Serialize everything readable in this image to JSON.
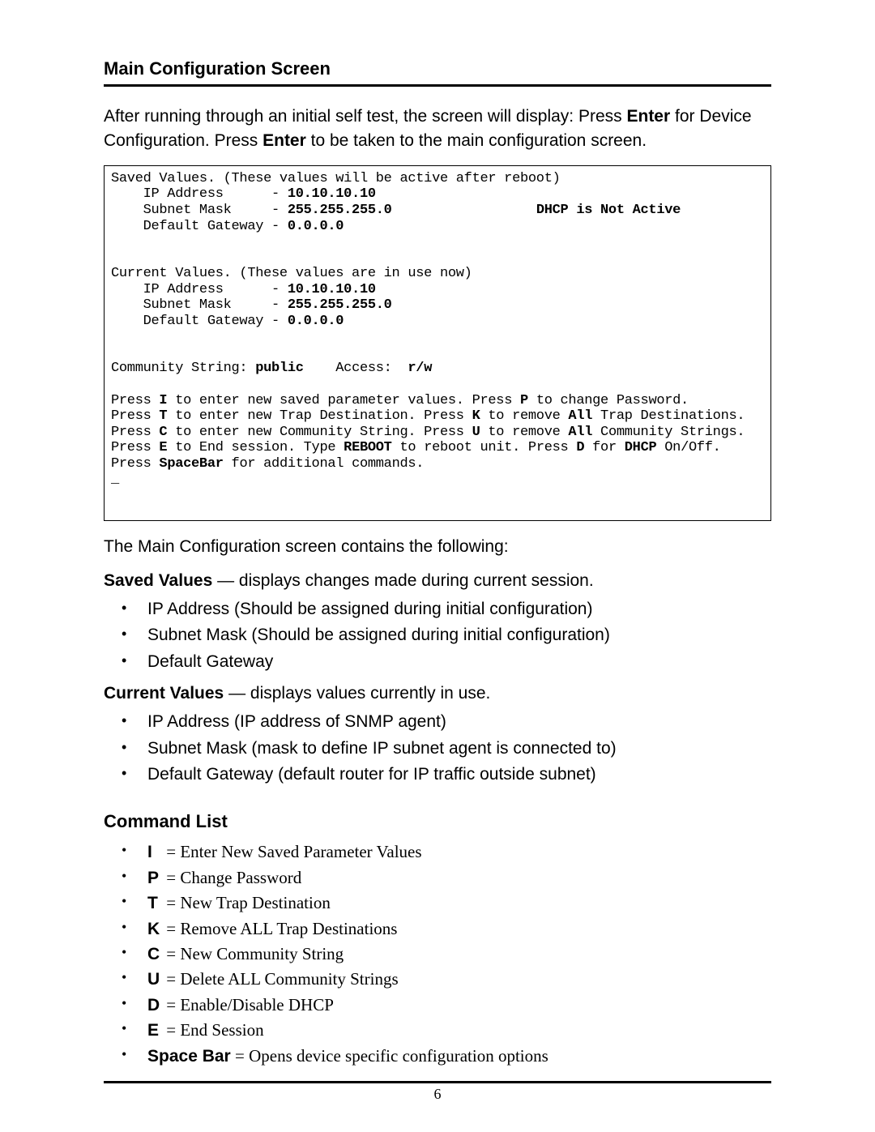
{
  "heading": "Main Configuration Screen",
  "intro_part1": "After running through an initial self test, the screen will display: Press ",
  "intro_bold1": "Enter",
  "intro_part2": " for Device Configuration.  Press ",
  "intro_bold2": "Enter",
  "intro_part3": " to be taken to the main configuration screen.",
  "terminal": {
    "saved_header": "Saved Values. (These values will be active after reboot)",
    "saved_ip_label": "    IP Address      - ",
    "saved_ip_value": "10.10.10.10",
    "saved_mask_label": "    Subnet Mask     - ",
    "saved_mask_value": "255.255.255.0",
    "dhcp_status_spacer": "                  ",
    "dhcp_status": "DHCP is Not Active",
    "saved_gw_label": "    Default Gateway - ",
    "saved_gw_value": "0.0.0.0",
    "current_header": "Current Values. (These values are in use now)",
    "current_ip_label": "    IP Address      - ",
    "current_ip_value": "10.10.10.10",
    "current_mask_label": "    Subnet Mask     - ",
    "current_mask_value": "255.255.255.0",
    "current_gw_label": "    Default Gateway - ",
    "current_gw_value": "0.0.0.0",
    "community_label": "Community String: ",
    "community_value": "public",
    "access_label": "    Access:  ",
    "access_value": "r/w",
    "help1_a": "Press ",
    "help1_k1": "I",
    "help1_b": " to enter new saved parameter values. Press ",
    "help1_k2": "P",
    "help1_c": " to change Password.",
    "help2_a": "Press ",
    "help2_k1": "T",
    "help2_b": " to enter new Trap Destination. Press ",
    "help2_k2": "K",
    "help2_c": " to remove ",
    "help2_k3": "All",
    "help2_d": " Trap Destinations.",
    "help3_a": "Press ",
    "help3_k1": "C",
    "help3_b": " to enter new Community String. Press ",
    "help3_k2": "U",
    "help3_c": " to remove ",
    "help3_k3": "All",
    "help3_d": " Community Strings.",
    "help4_a": "Press ",
    "help4_k1": "E",
    "help4_b": " to End session. Type ",
    "help4_k2": "REBOOT",
    "help4_c": " to reboot unit. Press ",
    "help4_k3": "D",
    "help4_d": " for ",
    "help4_k4": "DHCP",
    "help4_e": " On/Off.",
    "help5_a": "Press ",
    "help5_k1": "SpaceBar",
    "help5_b": " for additional commands.",
    "cursor": "_"
  },
  "contains_line": "The Main Configuration screen contains the following:",
  "saved_values_label": "Saved Values",
  "saved_values_desc": " — displays changes made during current session.",
  "saved_bullets": {
    "b1": "IP Address (Should be assigned during initial configuration)",
    "b2": "Subnet Mask (Should be assigned during initial configuration)",
    "b3": "Default Gateway"
  },
  "current_values_label": "Current Values",
  "current_values_desc": " — displays values currently in use.",
  "current_bullets": {
    "b1": "IP Address (IP address of SNMP agent)",
    "b2": "Subnet Mask (mask to define IP subnet agent is connected to)",
    "b3": "Default Gateway (default router for IP traffic outside subnet)"
  },
  "command_list_heading": "Command List",
  "commands": {
    "c1": {
      "key": "I",
      "desc": "Enter New Saved Parameter Values"
    },
    "c2": {
      "key": "P",
      "desc": "Change Password"
    },
    "c3": {
      "key": "T",
      "desc": "New Trap Destination"
    },
    "c4": {
      "key": "K",
      "desc": "Remove ALL Trap Destinations"
    },
    "c5": {
      "key": "C",
      "desc": "New Community String"
    },
    "c6": {
      "key": "U",
      "desc": "Delete ALL Community Strings"
    },
    "c7": {
      "key": "D",
      "desc": "Enable/Disable DHCP"
    },
    "c8": {
      "key": "E",
      "desc": "End Session"
    },
    "c9": {
      "key": "Space Bar",
      "desc": "Opens device specific configuration options"
    }
  },
  "page_number": "6"
}
